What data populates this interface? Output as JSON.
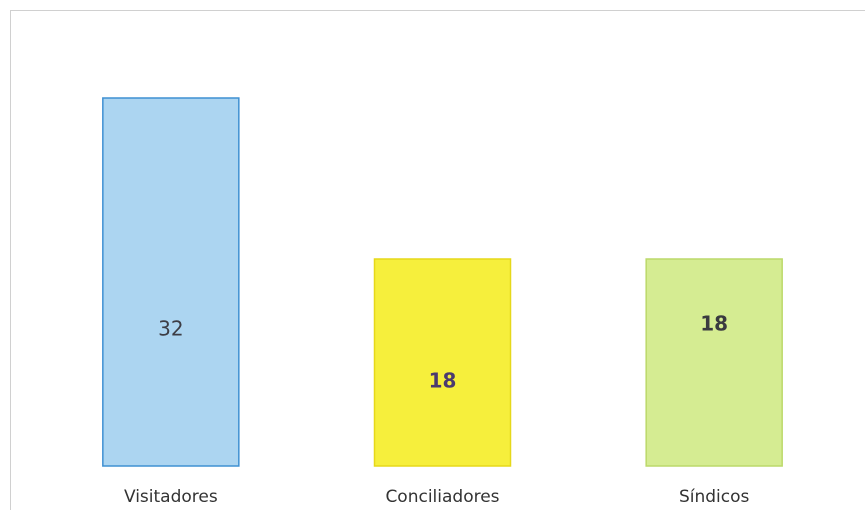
{
  "chart_data": {
    "type": "bar",
    "categories": [
      "Visitadores",
      "Conciliadores",
      "Síndicos"
    ],
    "values": [
      32,
      18,
      18
    ],
    "colors": [
      "#acd5f1",
      "#f6ef3c",
      "#d5ec92"
    ],
    "edge_colors": [
      "#3f90d2",
      "#e6d81a",
      "#bcd96a"
    ]
  }
}
